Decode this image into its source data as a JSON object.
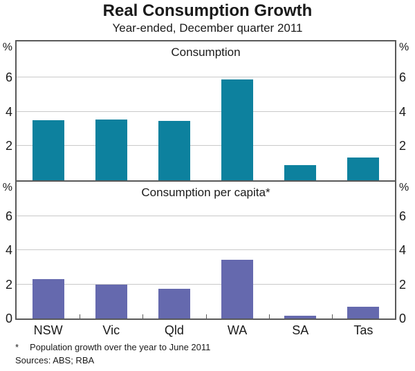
{
  "title": "Real Consumption Growth",
  "subtitle": "Year-ended, December quarter 2011",
  "percent_symbol": "%",
  "footnote": {
    "marker": "*",
    "text": "Population growth over the year to June 2011",
    "sources": "Sources: ABS; RBA"
  },
  "colors": {
    "top_bar": "#0d819e",
    "bottom_bar": "#6569ae",
    "frame": "#595959",
    "gridline": "#c9c9c9"
  },
  "chart_data": [
    {
      "type": "bar",
      "panel": "top",
      "title": "Consumption",
      "categories": [
        "NSW",
        "Vic",
        "Qld",
        "WA",
        "SA",
        "Tas"
      ],
      "values": [
        3.5,
        3.55,
        3.45,
        5.9,
        0.9,
        1.35
      ],
      "yticks": [
        2,
        4,
        6
      ],
      "ylim": [
        0,
        8.1
      ],
      "y_axis_unit": "%",
      "bar_color": "#0d819e",
      "grid": true,
      "legend": "none"
    },
    {
      "type": "bar",
      "panel": "bottom",
      "title": "Consumption per capita*",
      "categories": [
        "NSW",
        "Vic",
        "Qld",
        "WA",
        "SA",
        "Tas"
      ],
      "values": [
        2.3,
        2.0,
        1.75,
        3.45,
        0.15,
        0.7
      ],
      "yticks": [
        0,
        2,
        4,
        6
      ],
      "ylim": [
        0,
        8.0
      ],
      "y_axis_unit": "%",
      "bar_color": "#6569ae",
      "grid": true,
      "legend": "none"
    }
  ]
}
